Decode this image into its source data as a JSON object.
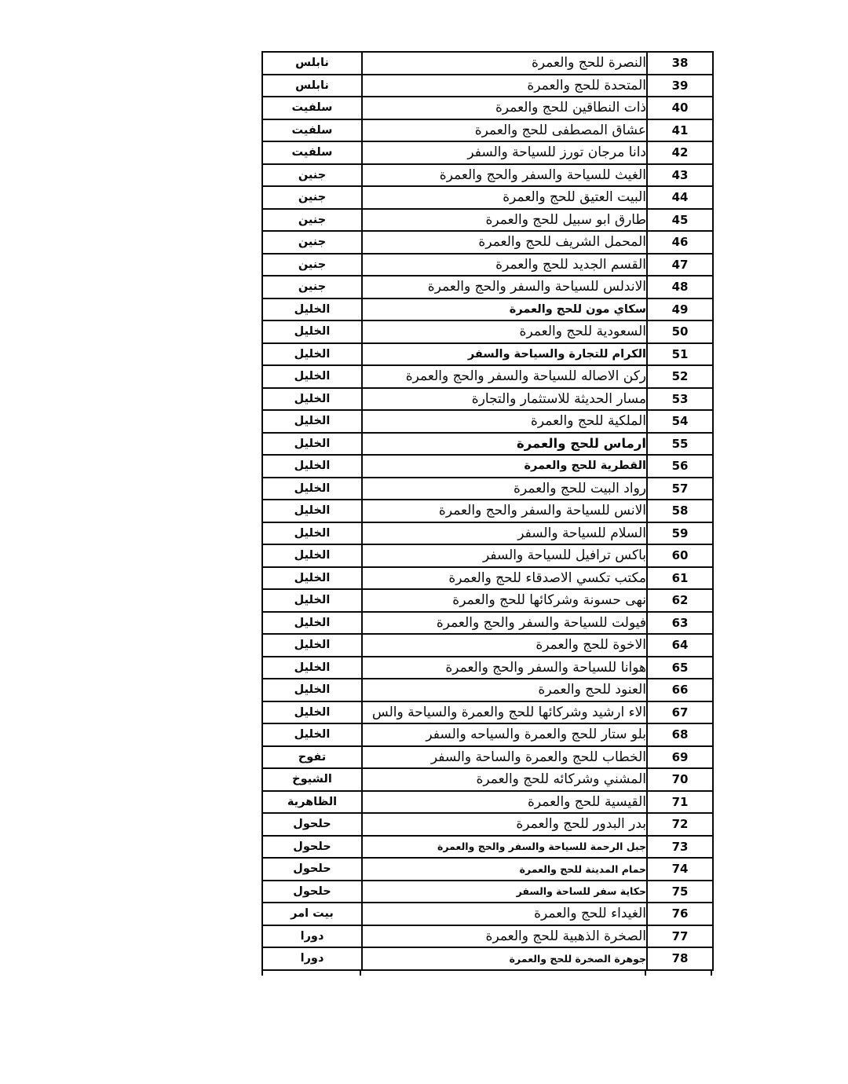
{
  "page": {
    "background_color": "#ffffff",
    "border_color": "#0a0a0a",
    "description_rows_range": "38-78"
  },
  "table": {
    "columns": [
      {
        "key": "no",
        "name": "serial-number-column"
      },
      {
        "key": "name",
        "name": "agency-name-column"
      },
      {
        "key": "city",
        "name": "city-column"
      }
    ],
    "rows": [
      {
        "no": "38",
        "name": "النصرة للحج والعمرة",
        "city": "نابلس",
        "style": "normal"
      },
      {
        "no": "39",
        "name": "المتحدة للحج والعمرة",
        "city": "نابلس",
        "style": "normal"
      },
      {
        "no": "40",
        "name": "ذات النطاقين للحج والعمرة",
        "city": "سلفيت",
        "style": "normal"
      },
      {
        "no": "41",
        "name": "عشاق المصطفى للحج والعمرة",
        "city": "سلفيت",
        "style": "normal"
      },
      {
        "no": "42",
        "name": "دانا مرجان تورز للسياحة والسفر",
        "city": "سلفيت",
        "style": "normal"
      },
      {
        "no": "43",
        "name": "الغيث للسياحة والسفر والحج والعمرة",
        "city": "جنين",
        "style": "normal"
      },
      {
        "no": "44",
        "name": "البيت العتيق للحج والعمرة",
        "city": "جنين",
        "style": "normal"
      },
      {
        "no": "45",
        "name": "طارق ابو سبيل للحج والعمرة",
        "city": "جنين",
        "style": "normal"
      },
      {
        "no": "46",
        "name": "المحمل الشريف للحج والعمرة",
        "city": "جنين",
        "style": "normal"
      },
      {
        "no": "47",
        "name": "القسم الجديد للحج والعمرة",
        "city": "جنين",
        "style": "normal"
      },
      {
        "no": "48",
        "name": "الاندلس للسياحة والسفر والحج والعمرة",
        "city": "جنين",
        "style": "normal"
      },
      {
        "no": "49",
        "name": "سكاي مون للحج والعمرة",
        "city": "الخليل",
        "style": "bold"
      },
      {
        "no": "50",
        "name": "السعودية للحج والعمرة",
        "city": "الخليل",
        "style": "normal"
      },
      {
        "no": "51",
        "name": "الكرام للتجارة والسياحة والسفر",
        "city": "الخليل",
        "style": "bold"
      },
      {
        "no": "52",
        "name": "ركن الاصاله للسياحة والسفر والحج والعمرة",
        "city": "الخليل",
        "style": "normal"
      },
      {
        "no": "53",
        "name": "مسار الحديثة للاستثمار والتجارة",
        "city": "الخليل",
        "style": "normal"
      },
      {
        "no": "54",
        "name": "الملكية للحج والعمرة",
        "city": "الخليل",
        "style": "normal"
      },
      {
        "no": "55",
        "name": "ارماس للحج والعمرة",
        "city": "الخليل",
        "style": "bold-large"
      },
      {
        "no": "56",
        "name": "القطرية للحج والعمرة",
        "city": "الخليل",
        "style": "bold"
      },
      {
        "no": "57",
        "name": "رواد البيت للحج والعمرة",
        "city": "الخليل",
        "style": "normal"
      },
      {
        "no": "58",
        "name": "الانس للسياحة والسفر والحج والعمرة",
        "city": "الخليل",
        "style": "normal"
      },
      {
        "no": "59",
        "name": "السلام للسياحة والسفر",
        "city": "الخليل",
        "style": "normal"
      },
      {
        "no": "60",
        "name": "باكس ترافيل للسياحة والسفر",
        "city": "الخليل",
        "style": "normal"
      },
      {
        "no": "61",
        "name": "مكتب تكسي الاصدقاء للحج والعمرة",
        "city": "الخليل",
        "style": "normal"
      },
      {
        "no": "62",
        "name": "نهى حسونة وشركائها للحج والعمرة",
        "city": "الخليل",
        "style": "normal"
      },
      {
        "no": "63",
        "name": "فيولت للسياحة والسفر والحج والعمرة",
        "city": "الخليل",
        "style": "normal"
      },
      {
        "no": "64",
        "name": "الاخوة للحج والعمرة",
        "city": "الخليل",
        "style": "normal"
      },
      {
        "no": "65",
        "name": "هوانا للسياحة والسفر والحج والعمرة",
        "city": "الخليل",
        "style": "normal"
      },
      {
        "no": "66",
        "name": "العنود للحج والعمرة",
        "city": "الخليل",
        "style": "normal"
      },
      {
        "no": "67",
        "name": "الاء ارشيد وشركائها للحج والعمرة والسياحة والس",
        "city": "الخليل",
        "style": "normal"
      },
      {
        "no": "68",
        "name": "بلو ستار للحج والعمرة والسياحه والسفر",
        "city": "الخليل",
        "style": "normal"
      },
      {
        "no": "69",
        "name": "الخطاب للحج والعمرة والساحة والسفر",
        "city": "تفوح",
        "style": "normal"
      },
      {
        "no": "70",
        "name": "المشني وشركائه للحج والعمرة",
        "city": "الشيوخ",
        "style": "normal"
      },
      {
        "no": "71",
        "name": "القيسية للحج والعمرة",
        "city": "الظاهرية",
        "style": "normal"
      },
      {
        "no": "72",
        "name": "بدر البدور للحج والعمرة",
        "city": "حلحول",
        "style": "normal"
      },
      {
        "no": "73",
        "name": "جبل الرحمة للسياحة والسفر والحج والعمرة",
        "city": "حلحول",
        "style": "bold-small"
      },
      {
        "no": "74",
        "name": "حمام المدينة للحج والعمرة",
        "city": "حلحول",
        "style": "bold-small"
      },
      {
        "no": "75",
        "name": "حكاية سفر للساحة والسفر",
        "city": "حلحول",
        "style": "bold-small"
      },
      {
        "no": "76",
        "name": "الغيداء للحج والعمرة",
        "city": "بيت امر",
        "style": "normal"
      },
      {
        "no": "77",
        "name": "الصخرة الذهبية للحج والعمرة",
        "city": "دورا",
        "style": "normal"
      },
      {
        "no": "78",
        "name": "جوهرة الصخرة للحج والعمرة",
        "city": "دورا",
        "style": "bold-small"
      }
    ]
  }
}
